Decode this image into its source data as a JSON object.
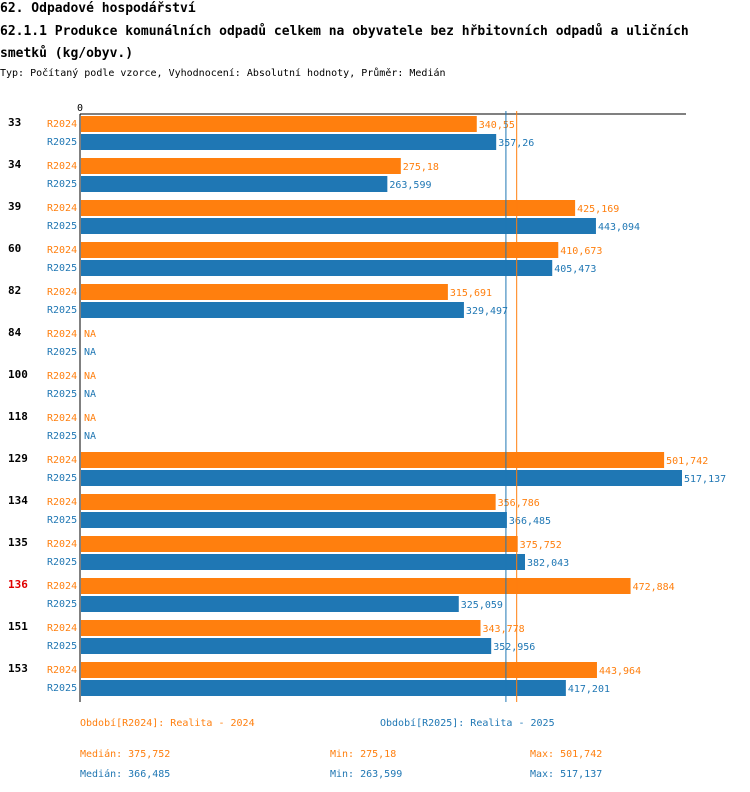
{
  "header": {
    "section": "62. Odpadové hospodářství",
    "indicator": "62.1.1 Produkce komunálních odpadů celkem na obyvatele bez hřbitovních odpadů a uličních smetků (kg/obyv.)",
    "meta": "Typ: Počítaný podle vzorce, Vyhodnocení: Absolutní hodnoty, Průměr: Medián"
  },
  "chart_data": {
    "type": "bar",
    "orientation": "horizontal",
    "axis_zero_label": "0",
    "xlim": [
      0,
      517.137
    ],
    "categories": [
      "33",
      "34",
      "39",
      "60",
      "82",
      "84",
      "100",
      "118",
      "129",
      "134",
      "135",
      "136",
      "151",
      "153"
    ],
    "highlight_category": "136",
    "highlight_color": "#e00000",
    "series": [
      {
        "name": "R2024",
        "color": "#ff7f0e",
        "values": [
          340.55,
          275.18,
          425.169,
          410.673,
          315.691,
          null,
          null,
          null,
          501.742,
          356.786,
          375.752,
          472.884,
          343.778,
          443.964
        ],
        "labels": [
          "340,55",
          "275,18",
          "425,169",
          "410,673",
          "315,691",
          "NA",
          "NA",
          "NA",
          "501,742",
          "356,786",
          "375,752",
          "472,884",
          "343,778",
          "443,964"
        ],
        "median": 375.752
      },
      {
        "name": "R2025",
        "color": "#1f77b4",
        "values": [
          357.26,
          263.599,
          443.094,
          405.473,
          329.497,
          null,
          null,
          null,
          517.137,
          366.485,
          382.043,
          325.059,
          352.956,
          417.201
        ],
        "labels": [
          "357,26",
          "263,599",
          "443,094",
          "405,473",
          "329,497",
          "NA",
          "NA",
          "NA",
          "517,137",
          "366,485",
          "382,043",
          "325,059",
          "352,956",
          "417,201"
        ],
        "median": 366.485
      }
    ]
  },
  "legend": {
    "r2024": "Období[R2024]: Realita - 2024",
    "r2025": "Období[R2025]: Realita - 2025"
  },
  "stats": {
    "r2024": {
      "median": "Medián: 375,752",
      "min": "Min: 275,18",
      "max": "Max: 501,742"
    },
    "r2025": {
      "median": "Medián: 366,485",
      "min": "Min: 263,599",
      "max": "Max: 517,137"
    }
  }
}
